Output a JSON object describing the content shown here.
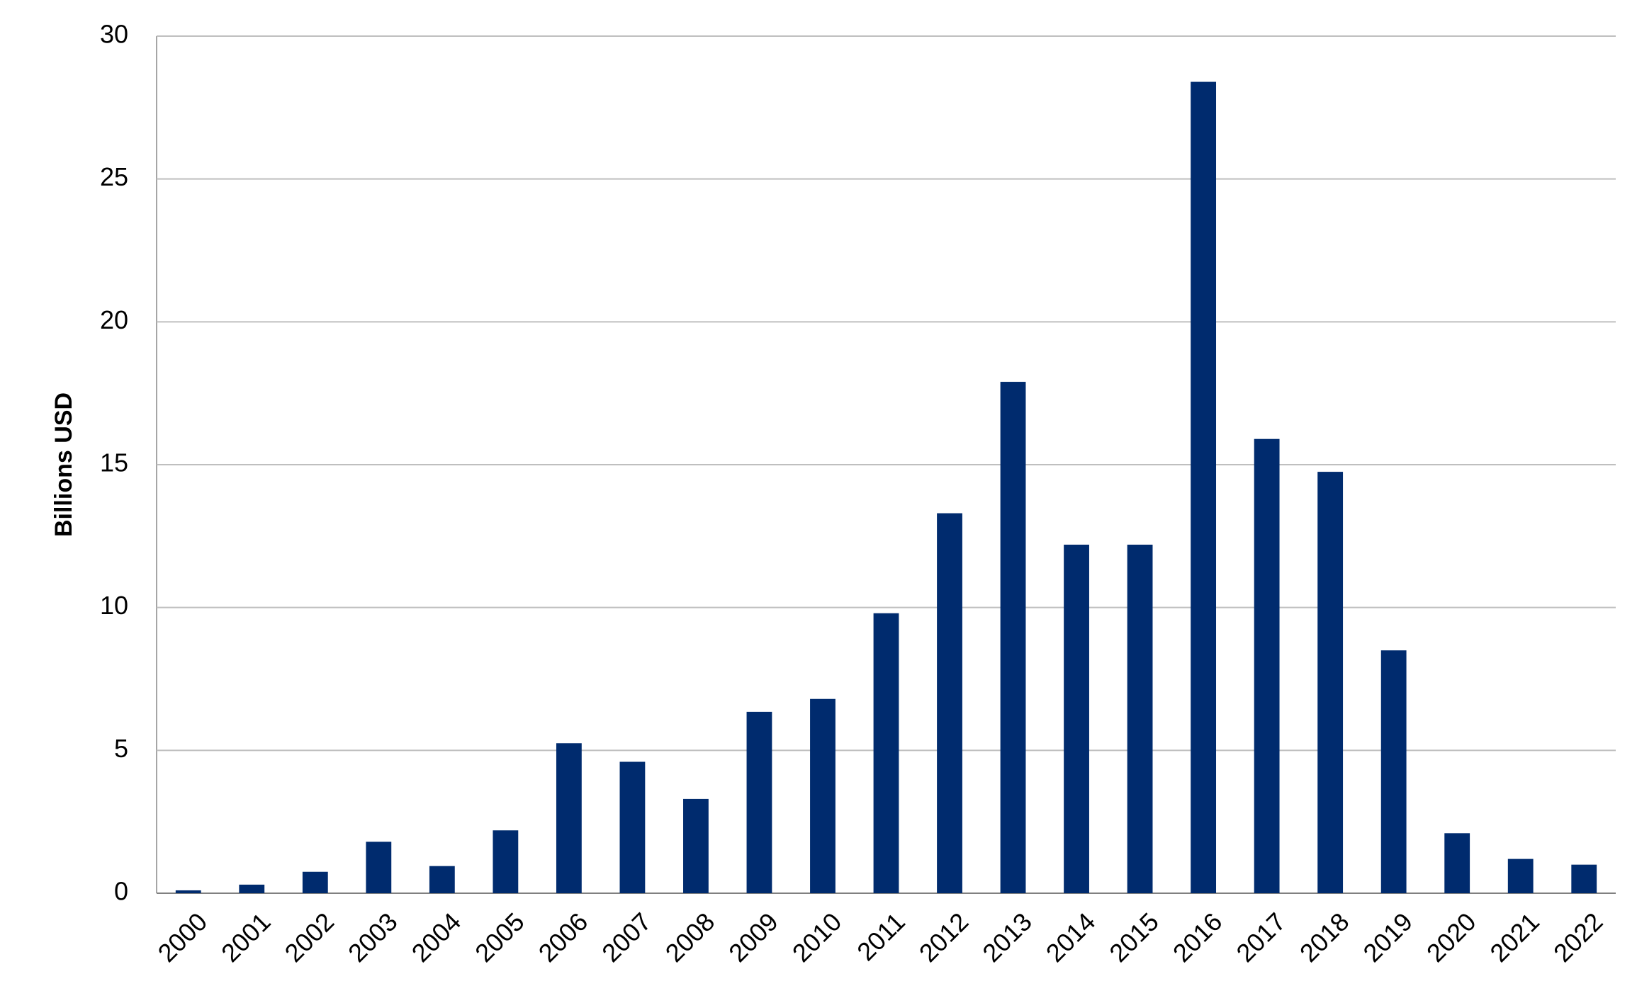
{
  "chart_data": {
    "type": "bar",
    "y_label": "Billions USD",
    "categories": [
      "2000",
      "2001",
      "2002",
      "2003",
      "2004",
      "2005",
      "2006",
      "2007",
      "2008",
      "2009",
      "2010",
      "2011",
      "2012",
      "2013",
      "2014",
      "2015",
      "2016",
      "2017",
      "2018",
      "2019",
      "2020",
      "2021",
      "2022"
    ],
    "values": [
      0.1,
      0.3,
      0.75,
      1.8,
      0.95,
      2.2,
      5.25,
      4.6,
      3.3,
      6.35,
      6.8,
      9.8,
      13.3,
      17.9,
      12.2,
      12.2,
      28.4,
      15.9,
      14.75,
      8.5,
      2.1,
      1.2,
      1.0
    ],
    "color": "#002b6e",
    "ylim": [
      0,
      30
    ],
    "yticks": [
      0,
      5,
      10,
      15,
      20,
      25,
      30
    ],
    "grid": true
  }
}
